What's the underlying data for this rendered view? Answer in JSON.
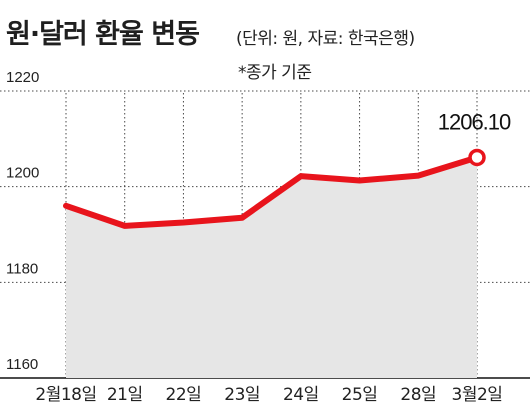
{
  "header": {
    "title": "원·달러 환율 변동",
    "subtitle": "(단위: 원, 자료: 한국은행)",
    "note": "*종가 기준"
  },
  "colors": {
    "line": "#e8141c",
    "area": "#e6e6e6",
    "grid": "#4a4a4a",
    "text": "#222222"
  },
  "chart_data": {
    "type": "area",
    "title": "원·달러 환율 변동",
    "unit": "원",
    "source": "한국은행",
    "categories": [
      "2월18일",
      "21일",
      "22일",
      "23일",
      "24일",
      "25일",
      "28일",
      "3월2일"
    ],
    "series": [
      {
        "values": [
          1196.0,
          1191.8,
          1192.5,
          1193.5,
          1202.2,
          1201.3,
          1202.3,
          1206.1
        ]
      }
    ],
    "ylim": [
      1160,
      1220
    ],
    "yticks": [
      1220,
      1200,
      1180,
      1160
    ],
    "ytick_labels": [
      "1220",
      "1200",
      "1180",
      "1160"
    ],
    "annotation": {
      "category": "3월2일",
      "label": "1206.10"
    },
    "grid": true
  }
}
